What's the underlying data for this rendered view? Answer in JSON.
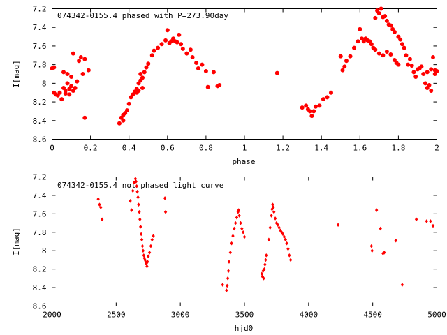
{
  "chart_data": [
    {
      "type": "scatter",
      "title": "074342-0155.4 phased with P=273.90day",
      "xlabel": "phase",
      "ylabel": "I[mag]",
      "xlim": [
        0,
        2
      ],
      "ylim": [
        8.6,
        7.2
      ],
      "y_inverted": true,
      "grid": false,
      "marker_color": "#ff0000",
      "marker": "filled-circle",
      "xticks": [
        "0",
        "0.2",
        "0.4",
        "0.6",
        "0.8",
        "1",
        "1.2",
        "1.4",
        "1.6",
        "1.8",
        "2"
      ],
      "yticks": [
        "7.2",
        "7.4",
        "7.6",
        "7.8",
        "8",
        "8.2",
        "8.4",
        "8.6"
      ],
      "points": [
        [
          0.0,
          7.84
        ],
        [
          0.01,
          7.83
        ],
        [
          0.01,
          8.1
        ],
        [
          0.02,
          8.12
        ],
        [
          0.03,
          8.13
        ],
        [
          0.04,
          8.1
        ],
        [
          0.05,
          8.17
        ],
        [
          0.06,
          8.05
        ],
        [
          0.06,
          7.88
        ],
        [
          0.07,
          8.08
        ],
        [
          0.07,
          8.11
        ],
        [
          0.08,
          8.0
        ],
        [
          0.08,
          7.9
        ],
        [
          0.09,
          8.06
        ],
        [
          0.09,
          8.12
        ],
        [
          0.1,
          8.03
        ],
        [
          0.1,
          7.93
        ],
        [
          0.11,
          8.08
        ],
        [
          0.11,
          7.68
        ],
        [
          0.12,
          8.05
        ],
        [
          0.13,
          7.98
        ],
        [
          0.14,
          7.76
        ],
        [
          0.15,
          7.72
        ],
        [
          0.16,
          7.9
        ],
        [
          0.17,
          7.74
        ],
        [
          0.17,
          8.37
        ],
        [
          0.19,
          7.86
        ],
        [
          0.35,
          8.43
        ],
        [
          0.36,
          8.37
        ],
        [
          0.37,
          8.34
        ],
        [
          0.37,
          8.4
        ],
        [
          0.38,
          8.32
        ],
        [
          0.39,
          8.29
        ],
        [
          0.4,
          8.22
        ],
        [
          0.41,
          8.15
        ],
        [
          0.42,
          8.12
        ],
        [
          0.43,
          8.09
        ],
        [
          0.44,
          8.06
        ],
        [
          0.45,
          8.0
        ],
        [
          0.46,
          7.97
        ],
        [
          0.47,
          7.94
        ],
        [
          0.48,
          7.88
        ],
        [
          0.49,
          7.83
        ],
        [
          0.5,
          7.79
        ],
        [
          0.52,
          7.7
        ],
        [
          0.53,
          7.65
        ],
        [
          0.55,
          7.62
        ],
        [
          0.57,
          7.58
        ],
        [
          0.59,
          7.54
        ],
        [
          0.6,
          7.43
        ],
        [
          0.61,
          7.57
        ],
        [
          0.62,
          7.55
        ],
        [
          0.63,
          7.52
        ],
        [
          0.64,
          7.55
        ],
        [
          0.65,
          7.56
        ],
        [
          0.66,
          7.48
        ],
        [
          0.67,
          7.58
        ],
        [
          0.68,
          7.63
        ],
        [
          0.7,
          7.68
        ],
        [
          0.72,
          7.64
        ],
        [
          0.73,
          7.72
        ],
        [
          0.75,
          7.78
        ],
        [
          0.76,
          7.84
        ],
        [
          0.78,
          7.8
        ],
        [
          0.8,
          7.87
        ],
        [
          0.81,
          8.04
        ],
        [
          0.84,
          7.88
        ],
        [
          0.86,
          8.03
        ],
        [
          0.87,
          8.02
        ],
        [
          0.46,
          7.9
        ],
        [
          0.47,
          8.05
        ],
        [
          0.44,
          8.1
        ],
        [
          0.45,
          8.08
        ],
        [
          1.17,
          7.89
        ],
        [
          1.3,
          8.26
        ],
        [
          1.32,
          8.24
        ],
        [
          1.33,
          8.28
        ],
        [
          1.34,
          8.3
        ],
        [
          1.35,
          8.35
        ],
        [
          1.36,
          8.3
        ],
        [
          1.37,
          8.25
        ],
        [
          1.39,
          8.24
        ],
        [
          1.41,
          8.17
        ],
        [
          1.43,
          8.15
        ],
        [
          1.45,
          8.1
        ],
        [
          1.5,
          7.71
        ],
        [
          1.51,
          7.86
        ],
        [
          1.52,
          7.82
        ],
        [
          1.53,
          7.76
        ],
        [
          1.55,
          7.71
        ],
        [
          1.57,
          7.62
        ],
        [
          1.59,
          7.55
        ],
        [
          1.6,
          7.42
        ],
        [
          1.61,
          7.52
        ],
        [
          1.62,
          7.55
        ],
        [
          1.63,
          7.52
        ],
        [
          1.64,
          7.54
        ],
        [
          1.65,
          7.55
        ],
        [
          1.66,
          7.58
        ],
        [
          1.67,
          7.62
        ],
        [
          1.68,
          7.3
        ],
        [
          1.69,
          7.22
        ],
        [
          1.7,
          7.25
        ],
        [
          1.71,
          7.2
        ],
        [
          1.72,
          7.29
        ],
        [
          1.73,
          7.28
        ],
        [
          1.74,
          7.33
        ],
        [
          1.75,
          7.37
        ],
        [
          1.76,
          7.38
        ],
        [
          1.77,
          7.42
        ],
        [
          1.78,
          7.45
        ],
        [
          1.8,
          7.5
        ],
        [
          1.81,
          7.53
        ],
        [
          1.82,
          7.58
        ],
        [
          1.83,
          7.62
        ],
        [
          1.84,
          7.7
        ],
        [
          1.86,
          7.74
        ],
        [
          1.87,
          7.81
        ],
        [
          1.88,
          7.88
        ],
        [
          1.89,
          7.93
        ],
        [
          1.9,
          7.85
        ],
        [
          1.91,
          7.84
        ],
        [
          1.92,
          7.82
        ],
        [
          1.93,
          7.9
        ],
        [
          1.94,
          8.0
        ],
        [
          1.95,
          8.05
        ],
        [
          1.96,
          8.02
        ],
        [
          1.97,
          8.08
        ],
        [
          1.98,
          7.72
        ],
        [
          1.99,
          7.9
        ],
        [
          2.0,
          7.87
        ],
        [
          1.68,
          7.64
        ],
        [
          1.7,
          7.68
        ],
        [
          1.72,
          7.7
        ],
        [
          1.74,
          7.66
        ],
        [
          1.76,
          7.69
        ],
        [
          1.78,
          7.75
        ],
        [
          1.79,
          7.78
        ],
        [
          1.8,
          7.8
        ],
        [
          1.85,
          7.8
        ],
        [
          1.95,
          7.88
        ],
        [
          1.97,
          7.85
        ],
        [
          1.99,
          7.86
        ]
      ]
    },
    {
      "type": "scatter",
      "title": "074342-0155.4 not phased light curve",
      "xlabel": "hjd0",
      "ylabel": "I[mag]",
      "xlim": [
        2000,
        5000
      ],
      "ylim": [
        8.6,
        7.2
      ],
      "y_inverted": true,
      "grid": false,
      "marker_color": "#ff0000",
      "marker": "small-diamond",
      "xticks": [
        "2000",
        "2500",
        "3000",
        "3500",
        "4000",
        "4500",
        "5000"
      ],
      "yticks": [
        "7.2",
        "7.4",
        "7.6",
        "7.8",
        "8",
        "8.2",
        "8.4",
        "8.6"
      ],
      "points": [
        [
          2360,
          7.44
        ],
        [
          2370,
          7.5
        ],
        [
          2380,
          7.53
        ],
        [
          2390,
          7.66
        ],
        [
          2610,
          7.46
        ],
        [
          2620,
          7.56
        ],
        [
          2630,
          7.35
        ],
        [
          2640,
          7.26
        ],
        [
          2650,
          7.22
        ],
        [
          2655,
          7.25
        ],
        [
          2660,
          7.3
        ],
        [
          2665,
          7.36
        ],
        [
          2670,
          7.42
        ],
        [
          2675,
          7.5
        ],
        [
          2680,
          7.58
        ],
        [
          2685,
          7.66
        ],
        [
          2690,
          7.74
        ],
        [
          2695,
          7.82
        ],
        [
          2700,
          7.88
        ],
        [
          2705,
          7.95
        ],
        [
          2710,
          8.0
        ],
        [
          2715,
          8.05
        ],
        [
          2720,
          8.08
        ],
        [
          2725,
          8.1
        ],
        [
          2730,
          8.12
        ],
        [
          2735,
          8.14
        ],
        [
          2740,
          8.17
        ],
        [
          2745,
          8.12
        ],
        [
          2750,
          8.06
        ],
        [
          2760,
          8.02
        ],
        [
          2770,
          7.95
        ],
        [
          2780,
          7.88
        ],
        [
          2790,
          7.84
        ],
        [
          2880,
          7.43
        ],
        [
          2885,
          7.58
        ],
        [
          3330,
          8.37
        ],
        [
          3360,
          8.43
        ],
        [
          3365,
          8.38
        ],
        [
          3370,
          8.3
        ],
        [
          3375,
          8.22
        ],
        [
          3380,
          8.12
        ],
        [
          3390,
          8.02
        ],
        [
          3400,
          7.92
        ],
        [
          3410,
          7.84
        ],
        [
          3420,
          7.76
        ],
        [
          3430,
          7.7
        ],
        [
          3440,
          7.64
        ],
        [
          3450,
          7.58
        ],
        [
          3455,
          7.56
        ],
        [
          3460,
          7.62
        ],
        [
          3470,
          7.7
        ],
        [
          3480,
          7.76
        ],
        [
          3490,
          7.8
        ],
        [
          3500,
          7.85
        ],
        [
          3635,
          8.25
        ],
        [
          3640,
          8.28
        ],
        [
          3645,
          8.22
        ],
        [
          3650,
          8.3
        ],
        [
          3655,
          8.2
        ],
        [
          3660,
          8.15
        ],
        [
          3665,
          8.1
        ],
        [
          3670,
          8.05
        ],
        [
          3690,
          7.88
        ],
        [
          3700,
          7.75
        ],
        [
          3710,
          7.62
        ],
        [
          3715,
          7.55
        ],
        [
          3720,
          7.5
        ],
        [
          3725,
          7.53
        ],
        [
          3730,
          7.58
        ],
        [
          3740,
          7.65
        ],
        [
          3750,
          7.7
        ],
        [
          3760,
          7.72
        ],
        [
          3770,
          7.75
        ],
        [
          3780,
          7.78
        ],
        [
          3790,
          7.8
        ],
        [
          3800,
          7.82
        ],
        [
          3810,
          7.85
        ],
        [
          3820,
          7.88
        ],
        [
          3830,
          7.92
        ],
        [
          3840,
          7.98
        ],
        [
          3850,
          8.05
        ],
        [
          3860,
          8.1
        ],
        [
          4230,
          7.72
        ],
        [
          4490,
          7.95
        ],
        [
          4495,
          8.0
        ],
        [
          4530,
          7.56
        ],
        [
          4560,
          7.76
        ],
        [
          4580,
          8.03
        ],
        [
          4590,
          8.02
        ],
        [
          4680,
          7.89
        ],
        [
          4730,
          8.37
        ],
        [
          4840,
          7.66
        ],
        [
          4920,
          7.68
        ],
        [
          4950,
          7.68
        ],
        [
          4970,
          7.73
        ]
      ]
    }
  ]
}
